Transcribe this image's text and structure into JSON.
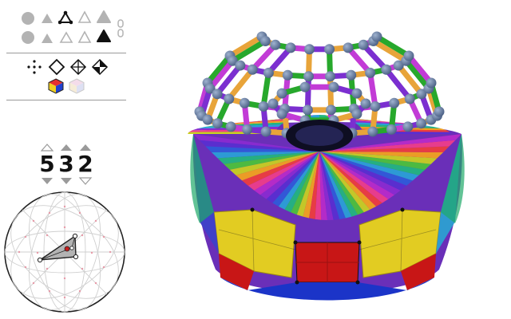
{
  "symmetry": {
    "digits": [
      "5",
      "3",
      "2"
    ]
  },
  "colors": {
    "accent": "#b0b0b0",
    "active": "#111111",
    "marker": "#c81e1e",
    "grid_dots": "#e89aa8",
    "faces": [
      "#e2cc22",
      "#c81616",
      "#1b34c8",
      "#1faa6a",
      "#8a2bd0",
      "#ee3d8a",
      "#f29a1e"
    ],
    "bonds": [
      "#7b2fd0",
      "#e8a43a",
      "#27a82c",
      "#c23bd6"
    ],
    "atoms": "#5a7096"
  },
  "icons": {
    "row1": [
      "circle-icon",
      "triangle-filled-icon",
      "triangle-vertices-icon",
      "triangle-outline-icon",
      "triangle-gray-icon",
      "chain-link-icon"
    ],
    "row2": [
      "circle-icon",
      "triangle-small-icon",
      "triangle-outline-small-icon",
      "triangle-outline-icon",
      "triangle-black-icon"
    ],
    "modes": [
      "points-icon",
      "diamond-outline-icon",
      "diamond-crosshair-icon",
      "diamond-split-icon"
    ],
    "render": [
      "colored-cube-icon",
      "pale-cube-icon"
    ]
  }
}
